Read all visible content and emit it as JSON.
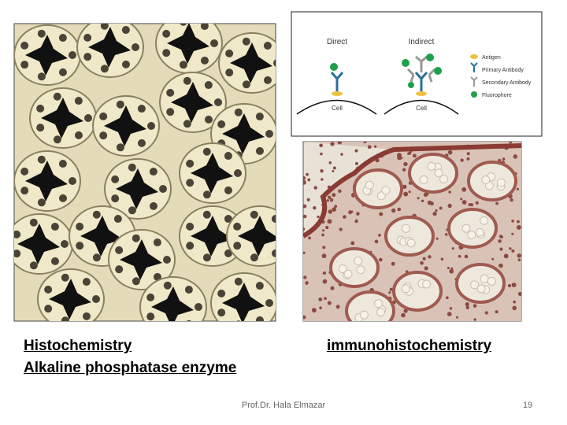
{
  "slide": {
    "diagram": {
      "direct": "Direct",
      "indirect": "Indirect",
      "legend": [
        "Antigen",
        "Primary Antibody",
        "Secondary Antibody",
        "Fluorophore"
      ],
      "cell_labels": [
        "Cell",
        "Cell"
      ]
    },
    "captions": {
      "left": [
        "Histochemistry",
        "Alkaline phosphatase enzyme"
      ],
      "right": "immunohistochemistry"
    },
    "footer": {
      "author": "Prof.Dr. Hala Elmazar",
      "page": "19"
    }
  }
}
